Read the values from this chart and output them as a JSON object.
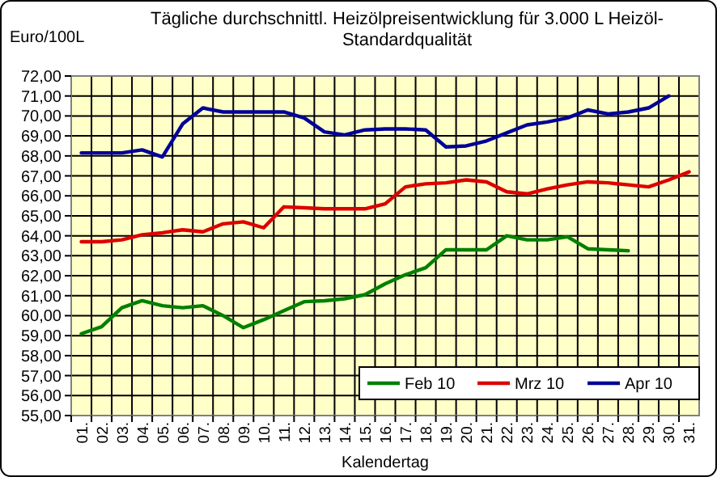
{
  "chart_data": {
    "type": "line",
    "title": "Tägliche durchschnittl. Heizölpreisentwicklung für 3.000 L Heizöl-Standardqualität",
    "xlabel": "Kalendertag",
    "ylabel": "Euro/100L",
    "categories": [
      "01.",
      "02.",
      "03.",
      "04.",
      "05.",
      "06.",
      "07.",
      "08.",
      "09.",
      "10.",
      "11.",
      "12.",
      "13.",
      "14.",
      "15.",
      "16.",
      "17.",
      "18.",
      "19.",
      "20.",
      "21.",
      "22.",
      "23.",
      "24.",
      "25.",
      "26.",
      "27.",
      "28.",
      "29.",
      "30.",
      "31."
    ],
    "series": [
      {
        "name": "Feb 10",
        "color": "#008000",
        "values": [
          59.1,
          59.45,
          60.4,
          60.75,
          60.5,
          60.4,
          60.5,
          60.0,
          59.4,
          59.8,
          60.25,
          60.7,
          60.75,
          60.85,
          61.05,
          61.6,
          62.05,
          62.4,
          63.3,
          63.3,
          63.3,
          64.0,
          63.8,
          63.8,
          63.95,
          63.35,
          63.3,
          63.25,
          null,
          null,
          null
        ]
      },
      {
        "name": "Mrz 10",
        "color": "#dd0000",
        "values": [
          63.7,
          63.7,
          63.8,
          64.05,
          64.15,
          64.3,
          64.2,
          64.6,
          64.7,
          64.4,
          65.45,
          65.4,
          65.35,
          65.35,
          65.35,
          65.6,
          66.45,
          66.6,
          66.65,
          66.8,
          66.7,
          66.2,
          66.1,
          66.35,
          66.55,
          66.7,
          66.65,
          66.55,
          66.45,
          66.8,
          67.2
        ]
      },
      {
        "name": "Apr 10",
        "color": "#000099",
        "values": [
          68.15,
          68.15,
          68.15,
          68.3,
          67.95,
          69.6,
          70.4,
          70.2,
          70.2,
          70.2,
          70.2,
          69.9,
          69.2,
          69.05,
          69.3,
          69.35,
          69.35,
          69.3,
          68.45,
          68.5,
          68.75,
          69.15,
          69.55,
          69.7,
          69.9,
          70.3,
          70.1,
          70.2,
          70.4,
          71.0,
          null
        ]
      }
    ],
    "ylim": [
      55,
      72
    ],
    "yticks": [
      {
        "value": 55,
        "label": "55,00"
      },
      {
        "value": 56,
        "label": "56,00"
      },
      {
        "value": 57,
        "label": "57,00"
      },
      {
        "value": 58,
        "label": "58,00"
      },
      {
        "value": 59,
        "label": "59,00"
      },
      {
        "value": 60,
        "label": "60,00"
      },
      {
        "value": 61,
        "label": "61,00"
      },
      {
        "value": 62,
        "label": "62,00"
      },
      {
        "value": 63,
        "label": "63,00"
      },
      {
        "value": 64,
        "label": "64,00"
      },
      {
        "value": 65,
        "label": "65,00"
      },
      {
        "value": 66,
        "label": "66,00"
      },
      {
        "value": 67,
        "label": "67,00"
      },
      {
        "value": 68,
        "label": "68,00"
      },
      {
        "value": 69,
        "label": "69,00"
      },
      {
        "value": 70,
        "label": "70,00"
      },
      {
        "value": 71,
        "label": "71,00"
      },
      {
        "value": 72,
        "label": "72,00"
      }
    ],
    "grid": true,
    "legend": "bottom right",
    "marker": "none",
    "line_style": "solid"
  }
}
